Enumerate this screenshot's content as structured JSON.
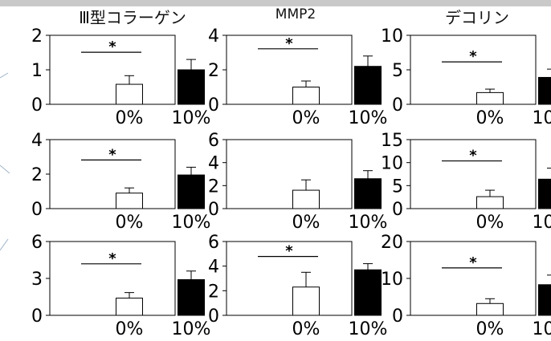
{
  "columns": [
    {
      "title": "Ⅲ型コラーゲン"
    },
    {
      "title": "MMP2"
    },
    {
      "title": "デコリン"
    }
  ],
  "chart_data": [
    {
      "type": "bar",
      "row": 0,
      "col": 0,
      "categories": [
        "0%",
        "10%"
      ],
      "values": [
        0.58,
        1.0
      ],
      "errors": [
        0.25,
        0.3
      ],
      "ylim": [
        0,
        2
      ],
      "yticks": [
        0,
        1,
        2
      ],
      "significance": "*"
    },
    {
      "type": "bar",
      "row": 0,
      "col": 1,
      "categories": [
        "0%",
        "10%"
      ],
      "values": [
        1.0,
        2.2
      ],
      "errors": [
        0.35,
        0.6
      ],
      "ylim": [
        0,
        4
      ],
      "yticks": [
        0,
        2,
        4
      ],
      "significance": "*"
    },
    {
      "type": "bar",
      "row": 0,
      "col": 2,
      "categories": [
        "0%",
        "10%"
      ],
      "values": [
        1.7,
        3.9
      ],
      "errors": [
        0.5,
        1.2
      ],
      "ylim": [
        0,
        10
      ],
      "yticks": [
        0,
        5,
        10
      ],
      "significance": "*"
    },
    {
      "type": "bar",
      "row": 1,
      "col": 0,
      "categories": [
        "0%",
        "10%"
      ],
      "values": [
        0.9,
        1.95
      ],
      "errors": [
        0.3,
        0.45
      ],
      "ylim": [
        0,
        4
      ],
      "yticks": [
        0,
        2,
        4
      ],
      "significance": "*"
    },
    {
      "type": "bar",
      "row": 1,
      "col": 1,
      "categories": [
        "0%",
        "10%"
      ],
      "values": [
        1.6,
        2.6
      ],
      "errors": [
        0.9,
        0.7
      ],
      "ylim": [
        0,
        6
      ],
      "yticks": [
        0,
        2,
        4,
        6
      ],
      "significance": ""
    },
    {
      "type": "bar",
      "row": 1,
      "col": 2,
      "categories": [
        "0%",
        "10%"
      ],
      "values": [
        2.6,
        6.4
      ],
      "errors": [
        1.4,
        2.4
      ],
      "ylim": [
        0,
        15
      ],
      "yticks": [
        0,
        5,
        10,
        15
      ],
      "significance": "*"
    },
    {
      "type": "bar",
      "row": 2,
      "col": 0,
      "categories": [
        "0%",
        "10%"
      ],
      "values": [
        1.4,
        2.9
      ],
      "errors": [
        0.45,
        0.7
      ],
      "ylim": [
        0,
        6
      ],
      "yticks": [
        0,
        3,
        6
      ],
      "significance": "*"
    },
    {
      "type": "bar",
      "row": 2,
      "col": 1,
      "categories": [
        "0%",
        "10%"
      ],
      "values": [
        2.3,
        3.7
      ],
      "errors": [
        1.2,
        0.5
      ],
      "ylim": [
        0,
        6
      ],
      "yticks": [
        0,
        2,
        4,
        6
      ],
      "significance": "*"
    },
    {
      "type": "bar",
      "row": 2,
      "col": 2,
      "categories": [
        "0%",
        "10%"
      ],
      "values": [
        3.2,
        8.3
      ],
      "errors": [
        1.3,
        2.6
      ],
      "ylim": [
        0,
        20
      ],
      "yticks": [
        0,
        10,
        20
      ],
      "significance": "*"
    }
  ],
  "colors": {
    "bar_0": "#ffffff",
    "bar_10": "#000000",
    "axis": "#000000"
  }
}
